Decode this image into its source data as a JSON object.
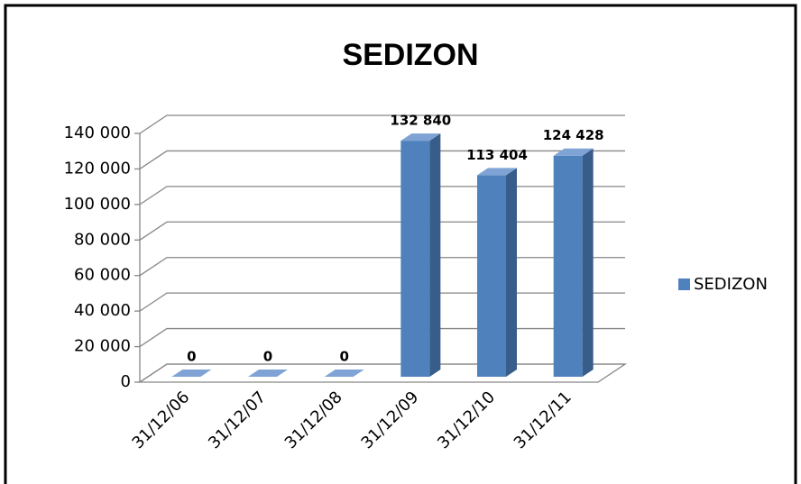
{
  "chart_data": {
    "type": "bar3d",
    "title": "SEDIZON",
    "categories": [
      "31/12/06",
      "31/12/07",
      "31/12/08",
      "31/12/09",
      "31/12/10",
      "31/12/11"
    ],
    "series": [
      {
        "name": "SEDIZON",
        "color": "#4f81bd",
        "values": [
          0,
          0,
          0,
          132840,
          113404,
          124428
        ],
        "value_labels": [
          "0",
          "0",
          "0",
          "132 840",
          "113 404",
          "124 428"
        ]
      }
    ],
    "ylim": [
      0,
      140000
    ],
    "yticks": [
      0,
      {
        "value": 20000,
        "label": "20 000"
      },
      {
        "value": 40000,
        "label": "40 000"
      },
      {
        "value": 60000,
        "label": "60 000"
      },
      {
        "value": 80000,
        "label": "80 000"
      },
      {
        "value": 100000,
        "label": "100 000"
      },
      {
        "value": 120000,
        "label": "120 000"
      },
      {
        "value": 140000,
        "label": "140 000"
      }
    ],
    "grid": true,
    "legend": "right"
  }
}
